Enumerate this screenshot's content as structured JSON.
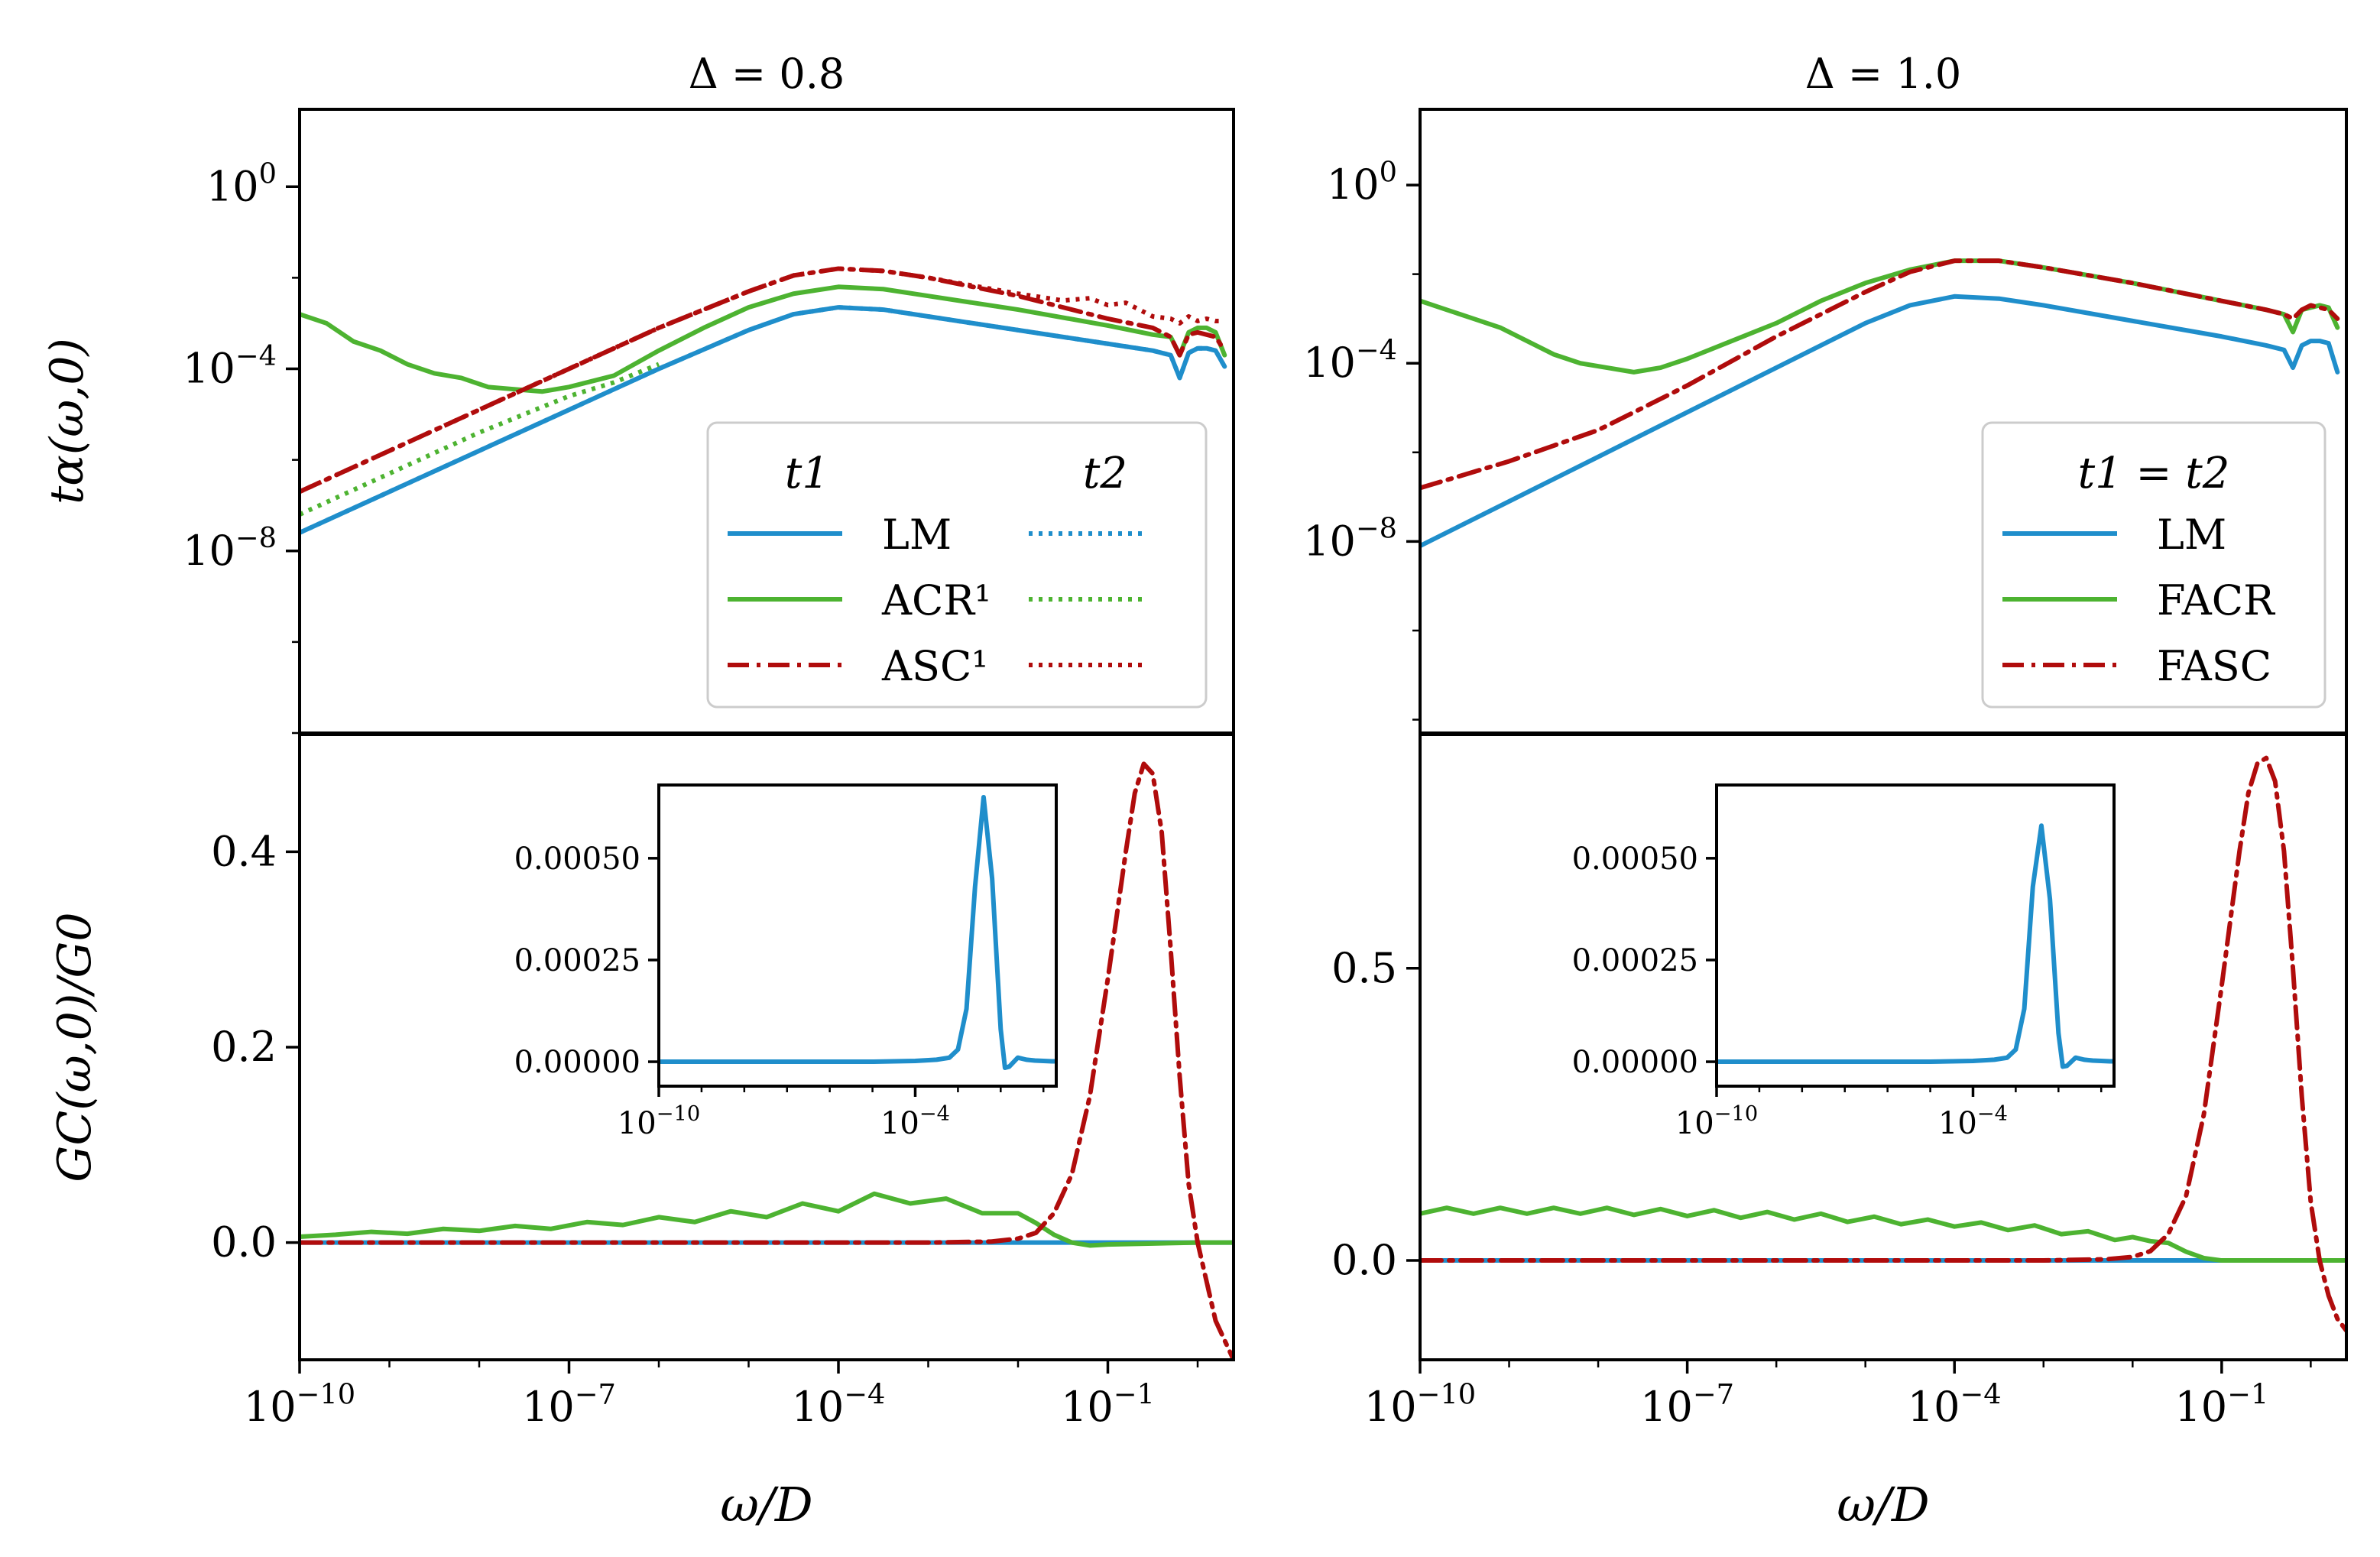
{
  "colors": {
    "LM": "#1f8ecb",
    "ACR": "#4db331",
    "ASC": "#b00c0c"
  },
  "chart_data": [
    {
      "panel": "top-left",
      "type": "line",
      "title": "Δ = 0.8",
      "xlabel": "",
      "ylabel": "tα(ω,0)",
      "xscale": "log",
      "yscale": "log",
      "xlim_exp": [
        -10,
        0.4
      ],
      "ylim_exp": [
        -12,
        1.7
      ],
      "xticks": [],
      "xtick_labels": [],
      "yticks_exp": [
        0,
        -4,
        -8
      ],
      "ytick_labels": [
        "10^0",
        "10^-4",
        "10^-8"
      ],
      "legend": {
        "position": "center-right",
        "col_titles": [
          "t1",
          "t2"
        ],
        "entries": [
          "LM",
          "ACR¹",
          "ASC¹"
        ]
      },
      "series": [
        {
          "name": "LM t1",
          "color": "LM",
          "style": "solid",
          "x_exp": [
            -10,
            -9,
            -8,
            -7,
            -6,
            -5,
            -4.5,
            -4,
            -3.5,
            -3,
            -2,
            -1,
            -0.5,
            -0.3,
            -0.2,
            -0.1,
            0,
            0.1,
            0.2,
            0.3
          ],
          "y_exp": [
            -7.6,
            -6.7,
            -5.8,
            -4.9,
            -4.0,
            -3.15,
            -2.8,
            -2.65,
            -2.7,
            -2.85,
            -3.15,
            -3.45,
            -3.6,
            -3.7,
            -4.2,
            -3.65,
            -3.55,
            -3.55,
            -3.6,
            -3.95
          ]
        },
        {
          "name": "ACR t1",
          "color": "ACR",
          "style": "solid",
          "x_exp": [
            -10,
            -9.7,
            -9.4,
            -9.1,
            -8.8,
            -8.5,
            -8.2,
            -7.9,
            -7.6,
            -7.3,
            -7,
            -6.5,
            -6,
            -5.5,
            -5,
            -4.5,
            -4,
            -3.5,
            -3,
            -2,
            -1,
            -0.5,
            -0.3,
            -0.2,
            -0.1,
            0,
            0.1,
            0.2,
            0.3
          ],
          "y_exp": [
            -2.8,
            -3.0,
            -3.4,
            -3.6,
            -3.9,
            -4.1,
            -4.2,
            -4.4,
            -4.45,
            -4.5,
            -4.4,
            -4.15,
            -3.6,
            -3.1,
            -2.65,
            -2.35,
            -2.2,
            -2.25,
            -2.4,
            -2.7,
            -3.05,
            -3.25,
            -3.3,
            -3.7,
            -3.2,
            -3.1,
            -3.1,
            -3.2,
            -3.7
          ]
        },
        {
          "name": "ASC t1",
          "color": "ASC",
          "style": "dashdot",
          "x_exp": [
            -10,
            -9,
            -8,
            -7,
            -6,
            -5,
            -4.5,
            -4,
            -3.5,
            -3,
            -2,
            -1,
            -0.5,
            -0.3,
            -0.2,
            -0.1,
            0,
            0.1,
            0.2,
            0.3
          ],
          "y_exp": [
            -6.7,
            -5.8,
            -4.9,
            -4.0,
            -3.1,
            -2.3,
            -1.95,
            -1.8,
            -1.85,
            -2.0,
            -2.4,
            -2.9,
            -3.1,
            -3.3,
            -3.7,
            -3.25,
            -3.2,
            -3.25,
            -3.3,
            -3.6
          ]
        },
        {
          "name": "LM t2",
          "color": "LM",
          "style": "dotted",
          "x_exp": [
            -10,
            -9,
            -8,
            -7,
            -6,
            -5,
            -4.5,
            -4,
            -3.5,
            -3,
            -2,
            -1,
            -0.5,
            -0.3,
            -0.2,
            -0.1,
            0,
            0.1,
            0.2,
            0.3
          ],
          "y_exp": [
            -7.6,
            -6.7,
            -5.8,
            -4.9,
            -4.0,
            -3.15,
            -2.8,
            -2.65,
            -2.7,
            -2.85,
            -3.15,
            -3.45,
            -3.6,
            -3.7,
            -4.2,
            -3.65,
            -3.55,
            -3.55,
            -3.6,
            -3.95
          ]
        },
        {
          "name": "ACR t2",
          "color": "ACR",
          "style": "dotted",
          "x_exp": [
            -10,
            -9,
            -8,
            -7,
            -6.5,
            -6
          ],
          "y_exp": [
            -7.2,
            -6.3,
            -5.4,
            -4.6,
            -4.3,
            -3.9
          ]
        },
        {
          "name": "ASC t2",
          "color": "ASC",
          "style": "dotted",
          "x_exp": [
            -10,
            -9,
            -8,
            -7,
            -6,
            -5,
            -4.5,
            -4,
            -3.5,
            -3,
            -2,
            -1.5,
            -1.2,
            -1,
            -0.8,
            -0.5,
            -0.3,
            -0.2,
            -0.1,
            0,
            0.1,
            0.2,
            0.3
          ],
          "y_exp": [
            -6.7,
            -5.8,
            -4.9,
            -4.0,
            -3.1,
            -2.3,
            -1.95,
            -1.8,
            -1.85,
            -2.0,
            -2.35,
            -2.5,
            -2.45,
            -2.6,
            -2.55,
            -2.85,
            -2.9,
            -3.0,
            -2.85,
            -2.95,
            -2.9,
            -2.95,
            -2.95
          ]
        }
      ]
    },
    {
      "panel": "top-right",
      "type": "line",
      "title": "Δ = 1.0",
      "xlabel": "",
      "ylabel": "",
      "xscale": "log",
      "yscale": "log",
      "xlim_exp": [
        -10,
        0.4
      ],
      "ylim_exp": [
        -12.3,
        1.7
      ],
      "xticks": [],
      "xtick_labels": [],
      "yticks_exp": [
        0,
        -4,
        -8
      ],
      "ytick_labels": [
        "10^0",
        "10^-4",
        "10^-8"
      ],
      "legend": {
        "position": "center-right",
        "col_titles": [
          "t1 = t2"
        ],
        "entries": [
          "LM",
          "FACR",
          "FASC"
        ]
      },
      "series": [
        {
          "name": "LM",
          "color": "LM",
          "style": "solid",
          "x_exp": [
            -10,
            -9,
            -8,
            -7,
            -6,
            -5,
            -4.5,
            -4,
            -3.5,
            -3,
            -2,
            -1,
            -0.5,
            -0.3,
            -0.2,
            -0.1,
            0,
            0.1,
            0.2,
            0.3
          ],
          "y_exp": [
            -8.1,
            -7.1,
            -6.1,
            -5.1,
            -4.1,
            -3.1,
            -2.7,
            -2.5,
            -2.55,
            -2.7,
            -3.05,
            -3.4,
            -3.6,
            -3.7,
            -4.1,
            -3.6,
            -3.5,
            -3.5,
            -3.55,
            -4.2
          ]
        },
        {
          "name": "FACR",
          "color": "ACR",
          "style": "solid",
          "x_exp": [
            -10,
            -9.7,
            -9.4,
            -9.1,
            -8.8,
            -8.5,
            -8.2,
            -7.9,
            -7.6,
            -7.3,
            -7,
            -6.5,
            -6,
            -5.5,
            -5,
            -4.5,
            -4,
            -3.5,
            -3,
            -2,
            -1,
            -0.5,
            -0.3,
            -0.2,
            -0.1,
            0,
            0.1,
            0.2,
            0.3
          ],
          "y_exp": [
            -2.6,
            -2.8,
            -3.0,
            -3.2,
            -3.5,
            -3.8,
            -4.0,
            -4.1,
            -4.2,
            -4.1,
            -3.9,
            -3.5,
            -3.1,
            -2.6,
            -2.2,
            -1.9,
            -1.7,
            -1.7,
            -1.85,
            -2.2,
            -2.6,
            -2.8,
            -2.9,
            -3.3,
            -2.8,
            -2.75,
            -2.7,
            -2.75,
            -3.2
          ]
        },
        {
          "name": "FASC",
          "color": "ASC",
          "style": "dashdot",
          "x_exp": [
            -10,
            -9,
            -8,
            -7,
            -6,
            -5,
            -4.5,
            -4,
            -3.5,
            -3,
            -2,
            -1,
            -0.5,
            -0.3,
            -0.2,
            -0.1,
            0,
            0.1,
            0.2,
            0.3
          ],
          "y_exp": [
            -6.8,
            -6.2,
            -5.5,
            -4.5,
            -3.4,
            -2.4,
            -1.95,
            -1.7,
            -1.7,
            -1.85,
            -2.2,
            -2.6,
            -2.8,
            -2.9,
            -3.0,
            -2.8,
            -2.7,
            -2.75,
            -2.8,
            -3.0
          ]
        }
      ]
    },
    {
      "panel": "bottom-left",
      "type": "line",
      "title": "",
      "xlabel": "ω/D",
      "ylabel": "GC(ω,0)/G0",
      "xscale": "log",
      "yscale": "linear",
      "xlim_exp": [
        -10,
        0.4
      ],
      "ylim": [
        -0.12,
        0.52
      ],
      "xticks_exp": [
        -10,
        -7,
        -4,
        -1
      ],
      "xtick_labels": [
        "10^-10",
        "10^-7",
        "10^-4",
        "10^-1"
      ],
      "yticks": [
        0.0,
        0.2,
        0.4
      ],
      "ytick_labels": [
        "0.0",
        "0.2",
        "0.4"
      ],
      "series": [
        {
          "name": "LM",
          "color": "LM",
          "style": "solid",
          "x_exp": [
            -10,
            -5,
            -2,
            -1,
            0,
            0.4
          ],
          "y": [
            0,
            0,
            0,
            0,
            0,
            0
          ]
        },
        {
          "name": "ACR",
          "color": "ACR",
          "style": "solid",
          "x_exp": [
            -10,
            -9.6,
            -9.2,
            -8.8,
            -8.4,
            -8,
            -7.6,
            -7.2,
            -6.8,
            -6.4,
            -6,
            -5.6,
            -5.2,
            -4.8,
            -4.4,
            -4,
            -3.6,
            -3.2,
            -2.8,
            -2.4,
            -2,
            -1.8,
            -1.6,
            -1.4,
            -1.2,
            -1,
            -0.5,
            0,
            0.4
          ],
          "y": [
            0.006,
            0.008,
            0.011,
            0.009,
            0.014,
            0.012,
            0.017,
            0.014,
            0.021,
            0.018,
            0.026,
            0.021,
            0.032,
            0.026,
            0.04,
            0.032,
            0.05,
            0.04,
            0.045,
            0.03,
            0.03,
            0.02,
            0.008,
            0.0,
            -0.003,
            -0.002,
            -0.001,
            0,
            0
          ]
        },
        {
          "name": "ASC",
          "color": "ASC",
          "style": "dashdot",
          "x_exp": [
            -10,
            -5,
            -3,
            -2.3,
            -2,
            -1.8,
            -1.6,
            -1.4,
            -1.2,
            -1,
            -0.8,
            -0.7,
            -0.6,
            -0.5,
            -0.4,
            -0.3,
            -0.2,
            -0.1,
            0,
            0.1,
            0.2,
            0.3,
            0.4
          ],
          "y": [
            0,
            0,
            0,
            0.001,
            0.004,
            0.01,
            0.03,
            0.07,
            0.15,
            0.27,
            0.4,
            0.46,
            0.49,
            0.48,
            0.42,
            0.3,
            0.17,
            0.06,
            0.0,
            -0.04,
            -0.08,
            -0.1,
            -0.12
          ]
        }
      ],
      "inset": {
        "xlim_exp": [
          -10,
          -0.7
        ],
        "ylim": [
          -6e-05,
          0.00068
        ],
        "xticks_exp": [
          -10,
          -4
        ],
        "xtick_labels": [
          "10^-10",
          "10^-4"
        ],
        "yticks": [
          0.0,
          0.00025,
          0.0005
        ],
        "ytick_labels": [
          "0.00000",
          "0.00025",
          "0.00050"
        ],
        "series": {
          "name": "LM",
          "color": "LM",
          "x_exp": [
            -10,
            -5,
            -4,
            -3.5,
            -3.2,
            -3,
            -2.8,
            -2.6,
            -2.4,
            -2.2,
            -2.0,
            -1.9,
            -1.8,
            -1.6,
            -1.4,
            -1.2,
            -1.0,
            -0.8,
            -0.7
          ],
          "y": [
            0,
            0,
            2e-06,
            5e-06,
            1e-05,
            3e-05,
            0.00013,
            0.00043,
            0.00065,
            0.00045,
            8e-05,
            -1.5e-05,
            -1.2e-05,
            1e-05,
            5e-06,
            3e-06,
            2e-06,
            1e-06,
            1e-06
          ]
        }
      }
    },
    {
      "panel": "bottom-right",
      "type": "line",
      "title": "",
      "xlabel": "ω/D",
      "ylabel": "",
      "xscale": "log",
      "yscale": "linear",
      "xlim_exp": [
        -10,
        0.4
      ],
      "ylim": [
        -0.17,
        0.9
      ],
      "xticks_exp": [
        -10,
        -7,
        -4,
        -1
      ],
      "xtick_labels": [
        "10^-10",
        "10^-7",
        "10^-4",
        "10^-1"
      ],
      "yticks": [
        0.0,
        0.5
      ],
      "ytick_labels": [
        "0.0",
        "0.5"
      ],
      "series": [
        {
          "name": "LM",
          "color": "LM",
          "style": "solid",
          "x_exp": [
            -10,
            -5,
            -2,
            -1,
            0,
            0.4
          ],
          "y": [
            0,
            0,
            0,
            0,
            0,
            0
          ]
        },
        {
          "name": "FACR",
          "color": "ACR",
          "style": "solid",
          "x_exp": [
            -10,
            -9.7,
            -9.4,
            -9.1,
            -8.8,
            -8.5,
            -8.2,
            -7.9,
            -7.6,
            -7.3,
            -7,
            -6.7,
            -6.4,
            -6.1,
            -5.8,
            -5.5,
            -5.2,
            -4.9,
            -4.6,
            -4.3,
            -4,
            -3.7,
            -3.4,
            -3.1,
            -2.8,
            -2.5,
            -2.2,
            -2,
            -1.8,
            -1.6,
            -1.4,
            -1.2,
            -1,
            -0.5,
            0,
            0.4
          ],
          "y": [
            0.08,
            0.09,
            0.08,
            0.09,
            0.08,
            0.09,
            0.08,
            0.09,
            0.078,
            0.088,
            0.076,
            0.086,
            0.073,
            0.083,
            0.07,
            0.08,
            0.066,
            0.075,
            0.062,
            0.07,
            0.058,
            0.065,
            0.052,
            0.06,
            0.045,
            0.05,
            0.035,
            0.04,
            0.033,
            0.03,
            0.015,
            0.004,
            0,
            0,
            0,
            0
          ]
        },
        {
          "name": "FASC",
          "color": "ASC",
          "style": "dashdot",
          "x_exp": [
            -10,
            -5,
            -3,
            -2.3,
            -2,
            -1.8,
            -1.6,
            -1.4,
            -1.2,
            -1,
            -0.8,
            -0.7,
            -0.6,
            -0.5,
            -0.4,
            -0.3,
            -0.2,
            -0.1,
            0,
            0.1,
            0.2,
            0.3,
            0.4
          ],
          "y": [
            0,
            0,
            0,
            0.002,
            0.006,
            0.016,
            0.045,
            0.11,
            0.25,
            0.47,
            0.7,
            0.8,
            0.85,
            0.86,
            0.82,
            0.7,
            0.5,
            0.28,
            0.1,
            0.0,
            -0.06,
            -0.1,
            -0.12
          ]
        }
      ],
      "inset": {
        "xlim_exp": [
          -10,
          -0.7
        ],
        "ylim": [
          -6e-05,
          0.00068
        ],
        "xticks_exp": [
          -10,
          -4
        ],
        "xtick_labels": [
          "10^-10",
          "10^-4"
        ],
        "yticks": [
          0.0,
          0.00025,
          0.0005
        ],
        "ytick_labels": [
          "0.00000",
          "0.00025",
          "0.00050"
        ],
        "series": {
          "name": "LM",
          "color": "LM",
          "x_exp": [
            -10,
            -5,
            -4,
            -3.5,
            -3.2,
            -3,
            -2.8,
            -2.6,
            -2.4,
            -2.2,
            -2.0,
            -1.9,
            -1.8,
            -1.6,
            -1.4,
            -1.2,
            -1.0,
            -0.8,
            -0.7
          ],
          "y": [
            0,
            0,
            2e-06,
            5e-06,
            1e-05,
            3e-05,
            0.00013,
            0.00043,
            0.00058,
            0.0004,
            7e-05,
            -1.2e-05,
            -1e-05,
            1e-05,
            5e-06,
            3e-06,
            2e-06,
            1e-06,
            1e-06
          ]
        }
      }
    }
  ]
}
